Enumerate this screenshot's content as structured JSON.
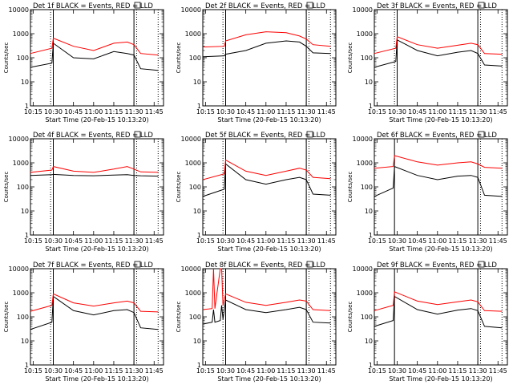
{
  "shared": {
    "xlabel": "Start Time (20-Feb-15 10:13:20)",
    "ylabel": "Counts/sec",
    "x_tick_labels": [
      "10:15",
      "10:30",
      "10:45",
      "11:00",
      "11:15",
      "11:30",
      "11:45"
    ],
    "y_tick_labels": [
      "1",
      "10",
      "100",
      "1000",
      "10000"
    ],
    "colors": {
      "events": "#000000",
      "lld": "#ff0000",
      "markers": "#000000"
    }
  },
  "chart_data": [
    {
      "type": "line",
      "title": "Det 1f BLACK = Events, RED = LLD",
      "xlim": [
        "10:13",
        "11:52"
      ],
      "ylim": [
        1,
        10000
      ],
      "y_scale": "log",
      "markers_solid": [
        "10:30",
        "11:30"
      ],
      "markers_dotted": [
        "10:28",
        "11:32",
        "11:48"
      ],
      "x": [
        "10:13",
        "10:29",
        "10:30",
        "10:45",
        "11:00",
        "11:15",
        "11:25",
        "11:30",
        "11:35",
        "11:48"
      ],
      "series": [
        {
          "name": "Events",
          "color": "#000000",
          "values": [
            40,
            60,
            400,
            100,
            90,
            180,
            150,
            130,
            35,
            30
          ]
        },
        {
          "name": "LLD",
          "color": "#ff0000",
          "values": [
            150,
            250,
            650,
            300,
            200,
            400,
            450,
            350,
            150,
            130
          ]
        }
      ]
    },
    {
      "type": "line",
      "title": "Det 2f BLACK = Events, RED = LLD",
      "xlim": [
        "10:13",
        "11:52"
      ],
      "ylim": [
        1,
        10000
      ],
      "y_scale": "log",
      "markers_solid": [
        "10:30",
        "11:30"
      ],
      "markers_dotted": [
        "10:28",
        "11:32",
        "11:48"
      ],
      "x": [
        "10:13",
        "10:29",
        "10:30",
        "10:45",
        "11:00",
        "11:15",
        "11:25",
        "11:30",
        "11:35",
        "11:48"
      ],
      "series": [
        {
          "name": "Events",
          "color": "#000000",
          "values": [
            110,
            120,
            140,
            200,
            400,
            500,
            450,
            300,
            160,
            150
          ]
        },
        {
          "name": "LLD",
          "color": "#ff0000",
          "values": [
            280,
            300,
            500,
            900,
            1200,
            1100,
            800,
            600,
            350,
            300
          ]
        }
      ]
    },
    {
      "type": "line",
      "title": "Det 3f BLACK = Events, RED = LLD",
      "xlim": [
        "10:13",
        "11:52"
      ],
      "ylim": [
        1,
        10000
      ],
      "y_scale": "log",
      "markers_solid": [
        "10:30",
        "11:30"
      ],
      "markers_dotted": [
        "10:28",
        "11:32",
        "11:48"
      ],
      "x": [
        "10:13",
        "10:29",
        "10:30",
        "10:45",
        "11:00",
        "11:15",
        "11:25",
        "11:30",
        "11:35",
        "11:48"
      ],
      "series": [
        {
          "name": "Events",
          "color": "#000000",
          "values": [
            40,
            70,
            550,
            200,
            120,
            170,
            200,
            150,
            50,
            45
          ]
        },
        {
          "name": "LLD",
          "color": "#ff0000",
          "values": [
            150,
            250,
            750,
            350,
            250,
            330,
            400,
            350,
            150,
            140
          ]
        }
      ]
    },
    {
      "type": "line",
      "title": "Det 4f BLACK = Events, RED = LLD",
      "xlim": [
        "10:13",
        "11:52"
      ],
      "ylim": [
        1,
        10000
      ],
      "y_scale": "log",
      "markers_solid": [
        "10:30",
        "11:30"
      ],
      "markers_dotted": [
        "10:28",
        "11:32",
        "11:48"
      ],
      "x": [
        "10:13",
        "10:29",
        "10:30",
        "10:45",
        "11:00",
        "11:15",
        "11:25",
        "11:30",
        "11:35",
        "11:48"
      ],
      "series": [
        {
          "name": "Events",
          "color": "#000000",
          "values": [
            300,
            320,
            330,
            300,
            290,
            310,
            320,
            300,
            290,
            280
          ]
        },
        {
          "name": "LLD",
          "color": "#ff0000",
          "values": [
            400,
            500,
            700,
            450,
            400,
            550,
            700,
            550,
            420,
            400
          ]
        }
      ]
    },
    {
      "type": "line",
      "title": "Det 5f BLACK = Events, RED = LLD",
      "xlim": [
        "10:13",
        "11:52"
      ],
      "ylim": [
        1,
        10000
      ],
      "y_scale": "log",
      "markers_solid": [
        "10:30",
        "11:30"
      ],
      "markers_dotted": [
        "10:28",
        "11:32",
        "11:48"
      ],
      "x": [
        "10:13",
        "10:29",
        "10:30",
        "10:45",
        "11:00",
        "11:15",
        "11:25",
        "11:30",
        "11:35",
        "11:48"
      ],
      "series": [
        {
          "name": "Events",
          "color": "#000000",
          "values": [
            40,
            80,
            900,
            200,
            130,
            200,
            250,
            200,
            50,
            45
          ]
        },
        {
          "name": "LLD",
          "color": "#ff0000",
          "values": [
            200,
            350,
            1300,
            450,
            300,
            450,
            600,
            500,
            250,
            220
          ]
        }
      ]
    },
    {
      "type": "line",
      "title": "Det 6f BLACK = Events, RED = LLD",
      "xlim": [
        "10:13",
        "11:52"
      ],
      "ylim": [
        1,
        10000
      ],
      "y_scale": "log",
      "markers_solid": [
        "10:28",
        "11:30"
      ],
      "markers_dotted": [
        "11:32",
        "11:48"
      ],
      "x": [
        "10:13",
        "10:27",
        "10:28",
        "10:45",
        "11:00",
        "11:15",
        "11:25",
        "11:30",
        "11:35",
        "11:48"
      ],
      "series": [
        {
          "name": "Events",
          "color": "#000000",
          "values": [
            40,
            90,
            700,
            300,
            200,
            280,
            300,
            250,
            45,
            40
          ]
        },
        {
          "name": "LLD",
          "color": "#ff0000",
          "values": [
            600,
            700,
            2000,
            1100,
            800,
            1000,
            1100,
            900,
            650,
            600
          ]
        }
      ]
    },
    {
      "type": "line",
      "title": "Det 7f BLACK = Events, RED = LLD",
      "xlim": [
        "10:13",
        "11:52"
      ],
      "ylim": [
        1,
        10000
      ],
      "y_scale": "log",
      "markers_solid": [
        "10:30",
        "11:30"
      ],
      "markers_dotted": [
        "10:28",
        "11:32",
        "11:48"
      ],
      "x": [
        "10:13",
        "10:29",
        "10:30",
        "10:45",
        "11:00",
        "11:15",
        "11:25",
        "11:30",
        "11:35",
        "11:48"
      ],
      "series": [
        {
          "name": "Events",
          "color": "#000000",
          "values": [
            30,
            60,
            700,
            180,
            120,
            180,
            200,
            150,
            35,
            30
          ]
        },
        {
          "name": "LLD",
          "color": "#ff0000",
          "values": [
            170,
            300,
            900,
            380,
            280,
            380,
            450,
            380,
            170,
            160
          ]
        }
      ]
    },
    {
      "type": "line",
      "title": "Det 8f BLACK = Events, RED = LLD",
      "xlim": [
        "10:13",
        "11:52"
      ],
      "ylim": [
        1,
        10000
      ],
      "y_scale": "log",
      "markers_solid": [
        "10:30",
        "11:30"
      ],
      "markers_dotted": [
        "10:28",
        "11:32",
        "11:48"
      ],
      "x": [
        "10:13",
        "10:20",
        "10:21",
        "10:22",
        "10:26",
        "10:27",
        "10:28",
        "10:30",
        "10:45",
        "11:00",
        "11:15",
        "11:25",
        "11:30",
        "11:35",
        "11:48"
      ],
      "series": [
        {
          "name": "Events",
          "color": "#000000",
          "values": [
            50,
            60,
            200,
            60,
            70,
            300,
            80,
            500,
            200,
            150,
            200,
            250,
            200,
            60,
            55
          ]
        },
        {
          "name": "LLD",
          "color": "#ff0000",
          "values": [
            200,
            220,
            10000,
            220,
            10000,
            10000,
            300,
            900,
            400,
            300,
            400,
            500,
            450,
            200,
            180
          ]
        }
      ]
    },
    {
      "type": "line",
      "title": "Det 9f BLACK = Events, RED = LLD",
      "xlim": [
        "10:13",
        "11:52"
      ],
      "ylim": [
        1,
        10000
      ],
      "y_scale": "log",
      "markers_solid": [
        "10:28",
        "11:30"
      ],
      "markers_dotted": [
        "11:32",
        "11:48"
      ],
      "x": [
        "10:13",
        "10:27",
        "10:28",
        "10:45",
        "11:00",
        "11:15",
        "11:25",
        "11:30",
        "11:35",
        "11:48"
      ],
      "series": [
        {
          "name": "Events",
          "color": "#000000",
          "values": [
            40,
            70,
            700,
            200,
            130,
            190,
            220,
            180,
            40,
            35
          ]
        },
        {
          "name": "LLD",
          "color": "#ff0000",
          "values": [
            180,
            300,
            1100,
            450,
            320,
            420,
            500,
            420,
            180,
            170
          ]
        }
      ]
    }
  ]
}
